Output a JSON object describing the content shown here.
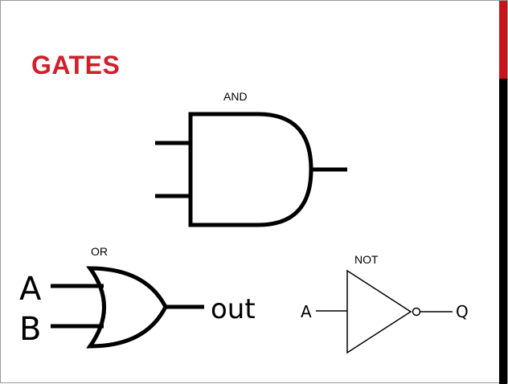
{
  "slide": {
    "title": "GATES",
    "title_color": "#d0202a",
    "accent_red": "#c4161c",
    "accent_dark": "#000000"
  },
  "gates": {
    "and": {
      "label": "AND"
    },
    "or": {
      "label": "OR",
      "input_a": "A",
      "input_b": "B",
      "output": "out"
    },
    "not": {
      "label": "NOT",
      "input": "A",
      "output": "Q"
    }
  }
}
